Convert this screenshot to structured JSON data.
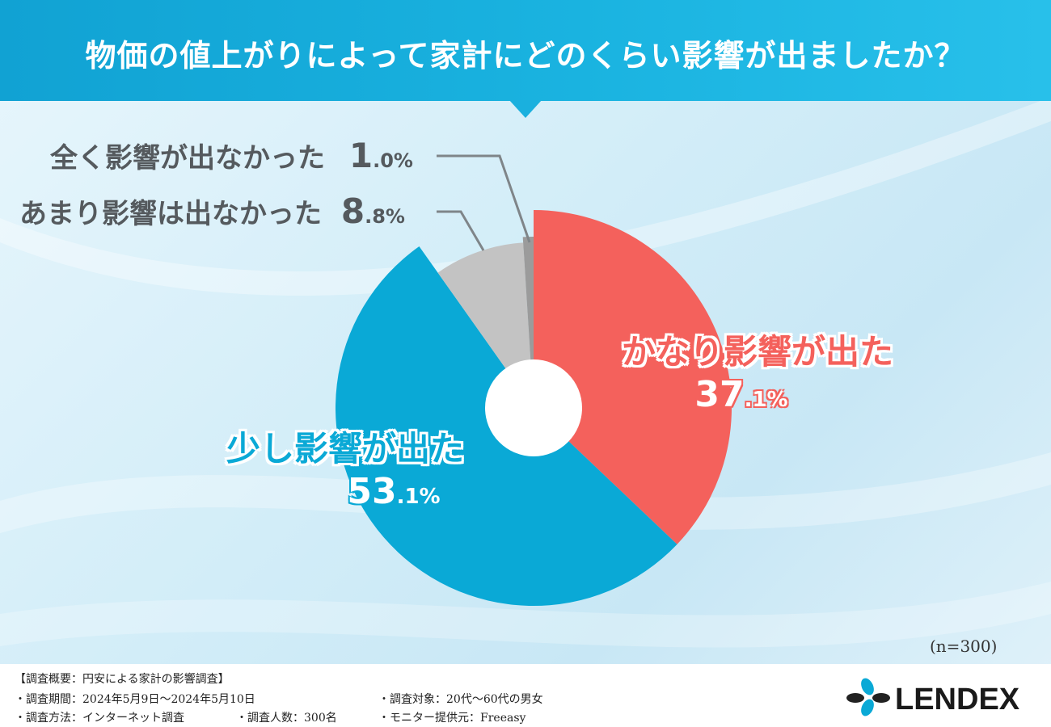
{
  "title": "物価の値上がりによって家計にどのくらい影響が出ましたか？",
  "chart_data": {
    "type": "pie",
    "categories": [
      "かなり影響が出た",
      "少し影響が出た",
      "あまり影響は出なかった",
      "全く影響が出なかった"
    ],
    "values": [
      37.1,
      53.1,
      8.8,
      1.0
    ],
    "value_labels": [
      "37.1%",
      "53.1%",
      "8.8%",
      "1.0%"
    ],
    "colors": [
      "#f4615c",
      "#0aa9d6",
      "#c3c3c3",
      "#9b9b9b"
    ]
  },
  "labels": {
    "red": {
      "category": "かなり影響が出た",
      "pct_int": "37",
      "pct_dec": ".1%"
    },
    "blue": {
      "category": "少し影響が出た",
      "pct_int": "53",
      "pct_dec": ".1%"
    },
    "light_gray": {
      "category": "あまり影響は出なかった",
      "pct_int": "8",
      "pct_dec": ".8%"
    },
    "dark_gray": {
      "category": "全く影響が出なかった",
      "pct_int": "1",
      "pct_dec": ".0%"
    }
  },
  "sample_size": "(n=300)",
  "footer": {
    "heading": "【調査概要：円安による家計の影響調査】",
    "period": "・調査期間：2024年5月9日〜2024年5月10日",
    "method": "・調査方法：インターネット調査",
    "count": "・調査人数：300名",
    "target": "・調査対象：20代〜60代の男女",
    "provider": "・モニター提供元：Freeasy"
  },
  "logo_text": "LENDEX"
}
